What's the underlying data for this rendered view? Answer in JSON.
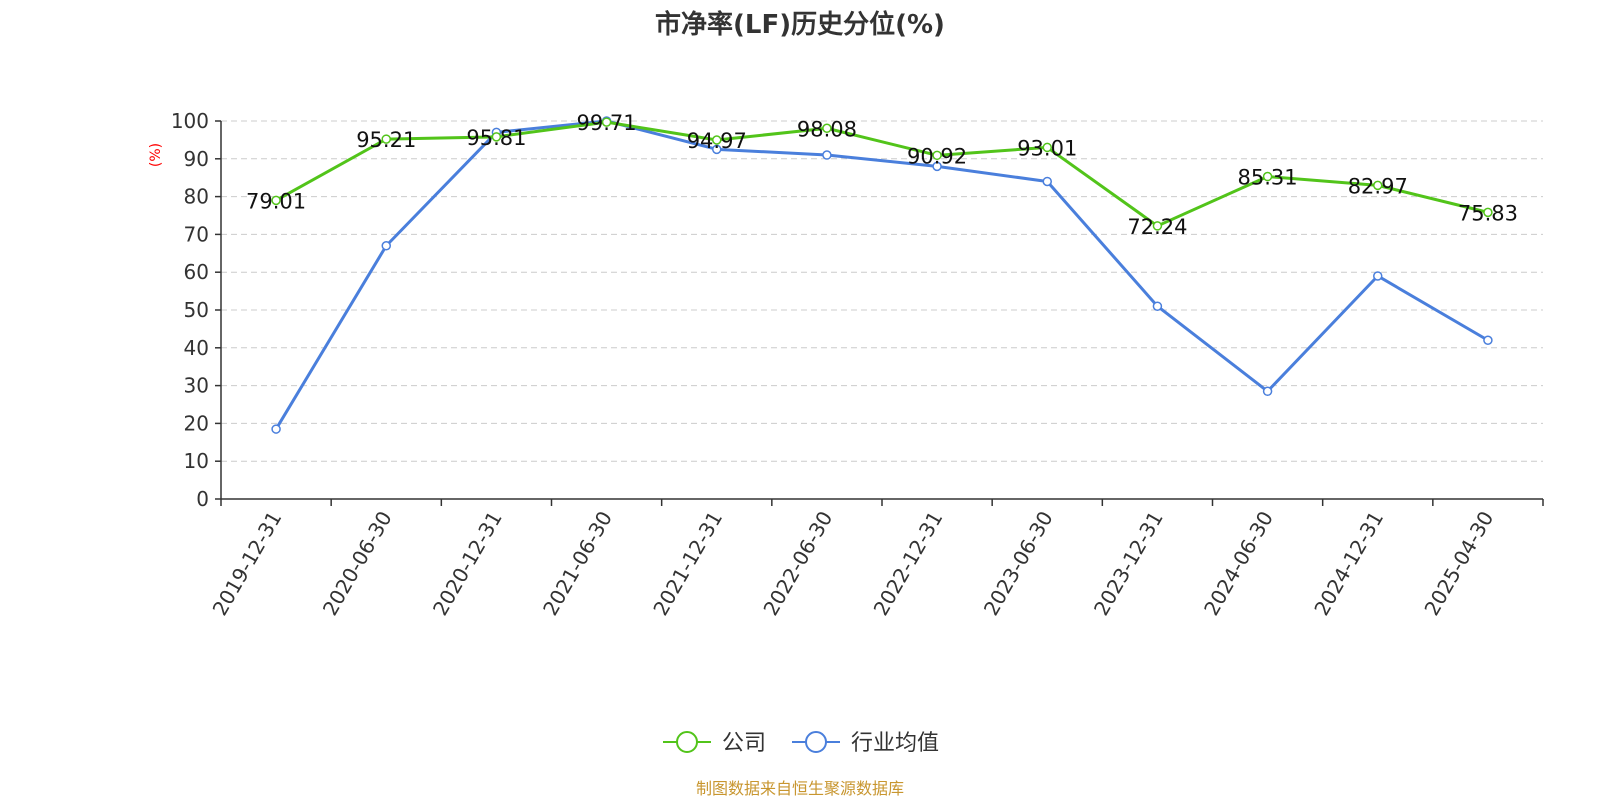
{
  "chart_data": {
    "type": "line",
    "title": "市净率(LF)历史分位(%)",
    "ylabel": "(%)",
    "ylim": [
      0,
      100
    ],
    "y_ticks": [
      0,
      10,
      20,
      30,
      40,
      50,
      60,
      70,
      80,
      90,
      100
    ],
    "categories": [
      "2019-12-31",
      "2020-06-30",
      "2020-12-31",
      "2021-06-30",
      "2021-12-31",
      "2022-06-30",
      "2022-12-31",
      "2023-06-30",
      "2023-12-31",
      "2024-06-30",
      "2024-12-31",
      "2025-04-30"
    ],
    "series": [
      {
        "name": "公司",
        "color": "#52c41a",
        "values": [
          79.01,
          95.21,
          95.81,
          99.71,
          94.97,
          98.08,
          90.92,
          93.01,
          72.24,
          85.31,
          82.97,
          75.83
        ],
        "labels": [
          "79.01",
          "95.21",
          "95.81",
          "99.71",
          "94.97",
          "98.08",
          "90.92",
          "93.01",
          "72.24",
          "85.31",
          "82.97",
          "75.83"
        ]
      },
      {
        "name": "行业均值",
        "color": "#4a7fdc",
        "values": [
          18.5,
          67,
          97,
          100,
          92.5,
          91,
          88,
          84,
          51,
          28.5,
          59,
          42
        ]
      }
    ],
    "grid": true,
    "legend_position": "bottom-center",
    "source": "制图数据来自恒生聚源数据库",
    "colors": {
      "unit_label": "#ff0000",
      "source_text": "#c8962f",
      "grid": "#cccccc",
      "axis": "#333333"
    }
  }
}
